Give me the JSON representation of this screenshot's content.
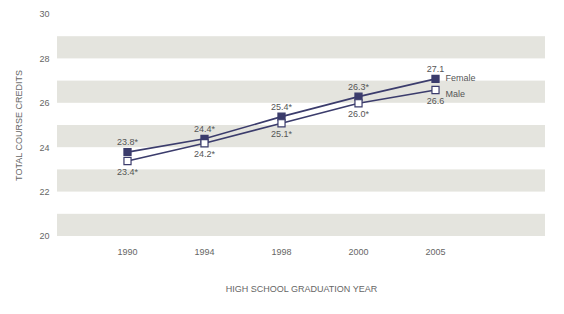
{
  "chart_data": {
    "type": "line",
    "categories": [
      "1990",
      "1994",
      "1998",
      "2000",
      "2005"
    ],
    "x_label": "HIGH SCHOOL GRADUATION YEAR",
    "y_label": "TOTAL COURSE CREDITS",
    "ylim": [
      20,
      30
    ],
    "yticks": [
      20,
      22,
      24,
      26,
      28,
      30
    ],
    "grid": true,
    "data_labels": true,
    "series": [
      {
        "name": "Female",
        "color": "#3b3c6c",
        "marker": "square",
        "line_style": "solid",
        "values": [
          23.8,
          24.4,
          25.4,
          26.3,
          27.1
        ],
        "value_labels": [
          "23.8*",
          "24.4*",
          "25.4*",
          "26.3*",
          "27.1"
        ]
      },
      {
        "name": "Male",
        "color": "#3b3c6c",
        "marker": "open_square",
        "line_style": "solid",
        "values": [
          23.4,
          24.2,
          25.1,
          26.0,
          26.6
        ],
        "value_labels": [
          "23.4*",
          "24.2*",
          "25.1*",
          "26.0*",
          "26.6"
        ]
      }
    ]
  }
}
